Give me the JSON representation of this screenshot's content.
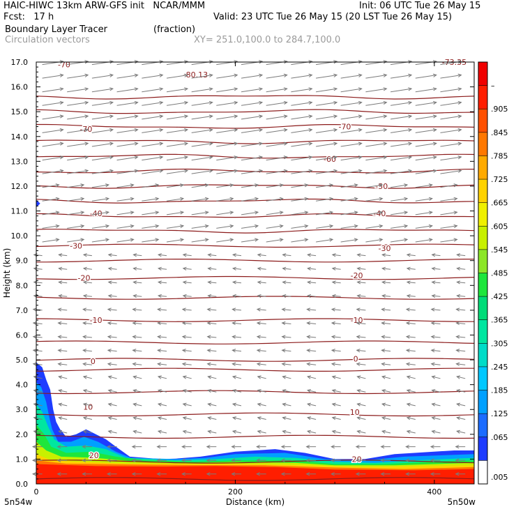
{
  "header": {
    "line1_left": "HAIC-HIWC 13km ARW-GFS init   NCAR/MMM",
    "line1_right": "Init: 06 UTC Tue 26 May 15",
    "line2_left": "Fcst:   17 h",
    "line2_right": "Valid: 23 UTC Tue 26 May 15 (20 LST Tue 26 May 15)",
    "line3_left": "Boundary Layer Tracer",
    "line3_mid": "(fraction)",
    "line4_left": "Circulation vectors",
    "line4_mid": "XY= 251.0,100.0 to 284.7,100.0"
  },
  "chart_data": {
    "type": "heatmap",
    "xlabel": "Distance (km)",
    "ylabel": "Height (km)",
    "xlim": [
      0,
      440
    ],
    "ylim": [
      0,
      17
    ],
    "x_ticks": [
      0,
      200,
      400
    ],
    "x_tick_labels": [
      "0",
      "200",
      "400"
    ],
    "x_endpoint_labels": [
      "5n54w",
      "5n50w"
    ],
    "y_ticks": [
      0,
      1,
      2,
      3,
      4,
      5,
      6,
      7,
      8,
      9,
      10,
      11,
      12,
      13,
      14,
      15,
      16,
      17
    ],
    "y_tick_labels": [
      "0.0",
      "1.0",
      "2.0",
      "3.0",
      "4.0",
      "5.0",
      "6.0",
      "7.0",
      "8.0",
      "9.0",
      "10.0",
      "11.0",
      "12.0",
      "13.0",
      "14.0",
      "15.0",
      "16.0",
      "17.0"
    ],
    "colorbar": {
      "labels": [
        ".005",
        ".065",
        ".125",
        ".185",
        ".245",
        ".305",
        ".365",
        ".425",
        ".485",
        ".545",
        ".605",
        ".665",
        ".725",
        ".785",
        ".845",
        ".905",
        "1"
      ],
      "colors": [
        "#ffffff",
        "#1e3cff",
        "#1c6cff",
        "#00a0ff",
        "#00c8ff",
        "#00dcc8",
        "#00e6a0",
        "#00dc78",
        "#1ee63c",
        "#8ce628",
        "#c8f000",
        "#f0f000",
        "#ffd200",
        "#ffaa00",
        "#ff7800",
        "#ff5000",
        "#ff1e00",
        "#f00000"
      ]
    },
    "contour_color": "#8b1a1a",
    "contour_labels": [
      {
        "text": "-70",
        "x": 28,
        "y": 16.9
      },
      {
        "text": "-80.13",
        "x": 160,
        "y": 16.5
      },
      {
        "text": "-73.35",
        "x": 420,
        "y": 17.0
      },
      {
        "text": "-70",
        "x": 50,
        "y": 14.3
      },
      {
        "text": "-70",
        "x": 310,
        "y": 14.4
      },
      {
        "text": "-60",
        "x": 295,
        "y": 13.1
      },
      {
        "text": "-50",
        "x": 347,
        "y": 12.0
      },
      {
        "text": "-40",
        "x": 60,
        "y": 10.9
      },
      {
        "text": "-40",
        "x": 345,
        "y": 10.9
      },
      {
        "text": "-30",
        "x": 40,
        "y": 9.6
      },
      {
        "text": "-30",
        "x": 350,
        "y": 9.5
      },
      {
        "text": "-20",
        "x": 48,
        "y": 8.3
      },
      {
        "text": "-20",
        "x": 322,
        "y": 8.4
      },
      {
        "text": "-10",
        "x": 60,
        "y": 6.6
      },
      {
        "text": "-10",
        "x": 322,
        "y": 6.6
      },
      {
        "text": "0",
        "x": 57,
        "y": 4.95
      },
      {
        "text": "0",
        "x": 321,
        "y": 5.05
      },
      {
        "text": "10",
        "x": 52,
        "y": 3.1
      },
      {
        "text": "10",
        "x": 320,
        "y": 2.9
      },
      {
        "text": "20",
        "x": 58,
        "y": 1.15
      },
      {
        "text": "20",
        "x": 322,
        "y": 1.0
      }
    ]
  }
}
